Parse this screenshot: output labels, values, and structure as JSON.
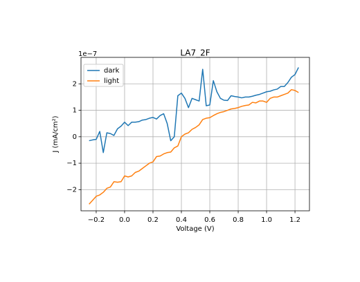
{
  "chart_data": {
    "type": "line",
    "title": "LA7_2F",
    "xlabel": "Voltage (V)",
    "ylabel": "J (mA/cm²)",
    "offset_text": "1e−7",
    "x": [
      -0.25,
      -0.225,
      -0.2,
      -0.175,
      -0.15,
      -0.125,
      -0.1,
      -0.075,
      -0.05,
      -0.025,
      0.0,
      0.025,
      0.05,
      0.075,
      0.1,
      0.125,
      0.15,
      0.175,
      0.2,
      0.225,
      0.25,
      0.275,
      0.3,
      0.325,
      0.35,
      0.375,
      0.4,
      0.425,
      0.45,
      0.475,
      0.5,
      0.525,
      0.55,
      0.575,
      0.6,
      0.625,
      0.65,
      0.675,
      0.7,
      0.725,
      0.75,
      0.775,
      0.8,
      0.825,
      0.85,
      0.875,
      0.9,
      0.925,
      0.95,
      0.975,
      1.0,
      1.025,
      1.05,
      1.075,
      1.1,
      1.125,
      1.15,
      1.175,
      1.2,
      1.225
    ],
    "series": [
      {
        "name": "dark",
        "color": "#1f77b4",
        "values": [
          -0.15,
          -0.12,
          -0.1,
          0.2,
          -0.6,
          0.15,
          0.12,
          0.05,
          0.3,
          0.4,
          0.55,
          0.42,
          0.55,
          0.55,
          0.57,
          0.63,
          0.65,
          0.7,
          0.73,
          0.67,
          0.8,
          0.87,
          0.5,
          -0.15,
          0.0,
          1.55,
          1.65,
          1.45,
          1.1,
          1.45,
          1.4,
          1.35,
          2.55,
          1.17,
          1.2,
          2.12,
          1.7,
          1.45,
          1.38,
          1.37,
          1.55,
          1.52,
          1.5,
          1.47,
          1.5,
          1.5,
          1.53,
          1.57,
          1.6,
          1.65,
          1.7,
          1.72,
          1.77,
          1.8,
          1.9,
          1.9,
          2.05,
          2.25,
          2.35,
          2.62
        ]
      },
      {
        "name": "light",
        "color": "#ff7f0e",
        "values": [
          -2.55,
          -2.4,
          -2.25,
          -2.2,
          -2.1,
          -1.95,
          -1.9,
          -1.7,
          -1.72,
          -1.7,
          -1.48,
          -1.52,
          -1.48,
          -1.35,
          -1.3,
          -1.2,
          -1.1,
          -1.0,
          -0.95,
          -0.75,
          -0.73,
          -0.65,
          -0.6,
          -0.58,
          -0.42,
          -0.35,
          0.0,
          0.1,
          0.15,
          0.28,
          0.35,
          0.45,
          0.65,
          0.7,
          0.72,
          0.8,
          0.87,
          0.92,
          0.95,
          1.0,
          1.05,
          1.07,
          1.1,
          1.15,
          1.18,
          1.2,
          1.3,
          1.28,
          1.35,
          1.35,
          1.3,
          1.45,
          1.5,
          1.5,
          1.55,
          1.6,
          1.65,
          1.78,
          1.75,
          1.67
        ]
      }
    ],
    "xlim": [
      -0.307,
      1.302
    ],
    "ylim": [
      -2.8,
      3.0
    ],
    "xticks": [
      {
        "value": -0.2,
        "label": "−0.2"
      },
      {
        "value": 0.0,
        "label": "0.0"
      },
      0.2,
      0.4,
      0.6,
      0.8,
      {
        "value": 1.0,
        "label": "1.0"
      },
      1.2
    ],
    "yticks": [
      {
        "value": -2,
        "label": "−2"
      },
      {
        "value": -1,
        "label": "−1"
      },
      0,
      1,
      2
    ],
    "grid": true,
    "legend": "upper left"
  }
}
